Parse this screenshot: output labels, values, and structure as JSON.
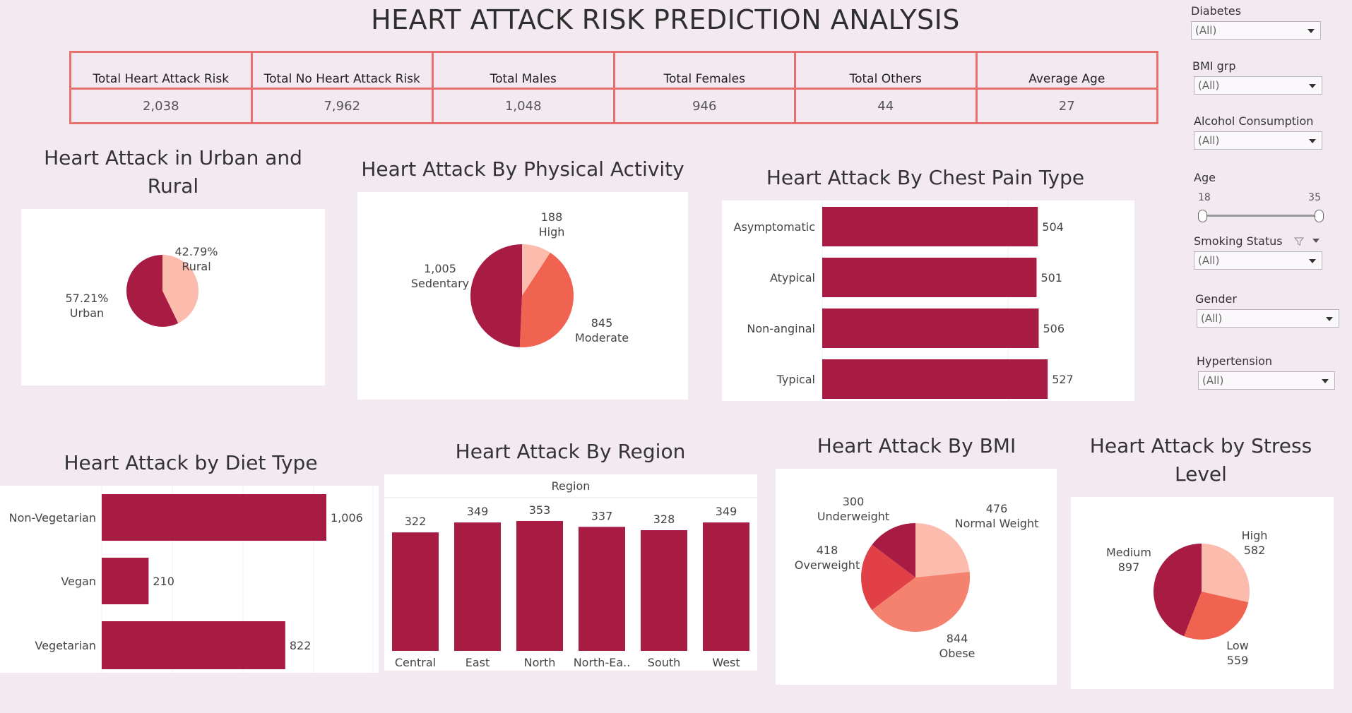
{
  "page_title": "HEART ATTACK RISK PREDICTION ANALYSIS",
  "kpis": [
    {
      "label": "Total Heart Attack Risk",
      "value": "2,038"
    },
    {
      "label": "Total No Heart Attack Risk",
      "value": "7,962"
    },
    {
      "label": "Total Males",
      "value": "1,048"
    },
    {
      "label": "Total Females",
      "value": "946"
    },
    {
      "label": "Total Others",
      "value": "44"
    },
    {
      "label": "Average Age",
      "value": "27"
    }
  ],
  "colors": {
    "dark": "#a81c44",
    "medium": "#f06350",
    "salmon": "#f5826e",
    "light": "#fbbbad",
    "red": "#e04046",
    "border": "#e8716e",
    "background": "#f3e9f1"
  },
  "filters": {
    "diabetes": {
      "label": "Diabetes",
      "value": "(All)"
    },
    "bmi_grp": {
      "label": "BMI grp",
      "value": "(All)"
    },
    "alcohol": {
      "label": "Alcohol Consumption",
      "value": "(All)"
    },
    "age": {
      "label": "Age",
      "min": "18",
      "max": "35"
    },
    "smoking": {
      "label": "Smoking Status",
      "value": "(All)"
    },
    "gender": {
      "label": "Gender",
      "value": "(All)"
    },
    "hypertension": {
      "label": "Hypertension",
      "value": "(All)"
    }
  },
  "chart_data": [
    {
      "id": "urban_rural",
      "type": "pie",
      "title": "Heart Attack in Urban and Rural",
      "categories": [
        "Rural",
        "Urban"
      ],
      "values": [
        42.79,
        57.21
      ],
      "value_labels": [
        "42.79%",
        "57.21%"
      ]
    },
    {
      "id": "physical",
      "type": "pie",
      "title": "Heart Attack By Physical Activity",
      "categories": [
        "High",
        "Moderate",
        "Sedentary"
      ],
      "values": [
        188,
        845,
        1005
      ],
      "value_labels": [
        "188",
        "845",
        "1,005"
      ]
    },
    {
      "id": "chest_pain",
      "type": "bar",
      "orientation": "horizontal",
      "title": "Heart Attack By Chest Pain Type",
      "categories": [
        "Asymptomatic",
        "Atypical",
        "Non-anginal",
        "Typical"
      ],
      "values": [
        504,
        501,
        506,
        527
      ]
    },
    {
      "id": "diet",
      "type": "bar",
      "orientation": "horizontal",
      "title": "Heart Attack by Diet Type",
      "categories": [
        "Non-Vegetarian",
        "Vegan",
        "Vegetarian"
      ],
      "values": [
        1006,
        210,
        822
      ],
      "value_labels": [
        "1,006",
        "210",
        "822"
      ]
    },
    {
      "id": "region",
      "type": "bar",
      "orientation": "vertical",
      "title": "Heart Attack By Region",
      "xlabel": "Region",
      "categories": [
        "Central",
        "East",
        "North",
        "North-Ea..",
        "South",
        "West"
      ],
      "values": [
        322,
        349,
        353,
        337,
        328,
        349
      ]
    },
    {
      "id": "bmi",
      "type": "pie",
      "title": "Heart Attack By BMI",
      "categories": [
        "Normal Weight",
        "Obese",
        "Overweight",
        "Underweight"
      ],
      "values": [
        476,
        844,
        418,
        300
      ],
      "value_labels": [
        "476",
        "844",
        "418",
        "300"
      ]
    },
    {
      "id": "stress",
      "type": "pie",
      "title": "Heart Attack by Stress Level",
      "categories": [
        "High",
        "Low",
        "Medium"
      ],
      "values": [
        582,
        559,
        897
      ],
      "value_labels": [
        "582",
        "559",
        "897"
      ]
    }
  ]
}
